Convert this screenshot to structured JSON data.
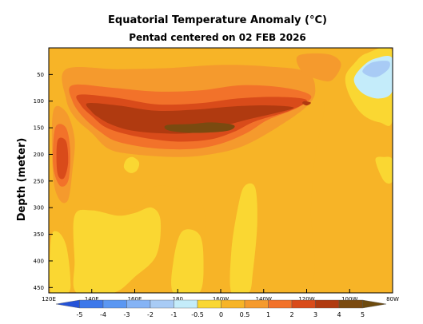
{
  "chart_data": {
    "type": "heatmap",
    "title": "Equatorial Temperature Anomaly (°C)",
    "subtitle": "Pentad centered on 02 FEB 2026",
    "ylabel": "Depth (meter)",
    "xlabel": "",
    "x_range": [
      120,
      280
    ],
    "y_range": [
      0,
      460
    ],
    "y_inverted": true,
    "x_ticks": [
      {
        "value": 120,
        "label": "120E"
      },
      {
        "value": 140,
        "label": "140E"
      },
      {
        "value": 160,
        "label": "160E"
      },
      {
        "value": 180,
        "label": "180"
      },
      {
        "value": 200,
        "label": "160W"
      },
      {
        "value": 220,
        "label": "140W"
      },
      {
        "value": 240,
        "label": "120W"
      },
      {
        "value": 260,
        "label": "100W"
      },
      {
        "value": 280,
        "label": "80W"
      }
    ],
    "y_ticks": [
      {
        "value": 50,
        "label": "50"
      },
      {
        "value": 100,
        "label": "100"
      },
      {
        "value": 150,
        "label": "150"
      },
      {
        "value": 200,
        "label": "200"
      },
      {
        "value": 250,
        "label": "250"
      },
      {
        "value": 300,
        "label": "300"
      },
      {
        "value": 350,
        "label": "350"
      },
      {
        "value": 400,
        "label": "400"
      },
      {
        "value": 450,
        "label": "450"
      }
    ],
    "colorbar": {
      "levels": [
        {
          "label": "-5",
          "value": -5
        },
        {
          "label": "-4",
          "value": -4
        },
        {
          "label": "-3",
          "value": -3
        },
        {
          "label": "-2",
          "value": -2
        },
        {
          "label": "-1",
          "value": -1
        },
        {
          "label": "-0.5",
          "value": -0.5
        },
        {
          "label": "0",
          "value": 0
        },
        {
          "label": "0.5",
          "value": 0.5
        },
        {
          "label": "1",
          "value": 1
        },
        {
          "label": "2",
          "value": 2
        },
        {
          "label": "3",
          "value": 3
        },
        {
          "label": "4",
          "value": 4
        },
        {
          "label": "5",
          "value": 5
        }
      ],
      "colors": [
        "#2452d8",
        "#3d78ea",
        "#5b97f2",
        "#85b3f5",
        "#a8cbf5",
        "#c4ecfa",
        "#fad732",
        "#f7b427",
        "#f59a2d",
        "#f2722a",
        "#d94b1a",
        "#b03a10",
        "#7a4a10",
        "#6d4a0e"
      ]
    },
    "regions": [
      {
        "level": 0.25,
        "points": [
          [
            126,
            30
          ],
          [
            150,
            30
          ],
          [
            175,
            25
          ],
          [
            200,
            22
          ],
          [
            225,
            25
          ],
          [
            242,
            30
          ],
          [
            248,
            60
          ],
          [
            248,
            120
          ],
          [
            244,
            200
          ],
          [
            242,
            300
          ],
          [
            240,
            460
          ],
          [
            196,
            460
          ],
          [
            192,
            300
          ],
          [
            180,
            265
          ],
          [
            168,
            262
          ],
          [
            160,
            300
          ],
          [
            150,
            300
          ],
          [
            140,
            280
          ],
          [
            130,
            280
          ],
          [
            124,
            400
          ],
          [
            121,
            330
          ],
          [
            121,
            100
          ]
        ]
      },
      {
        "level": 0.75,
        "points": [
          [
            128,
            40
          ],
          [
            152,
            40
          ],
          [
            175,
            38
          ],
          [
            200,
            32
          ],
          [
            222,
            35
          ],
          [
            240,
            45
          ],
          [
            244,
            80
          ],
          [
            240,
            110
          ],
          [
            226,
            150
          ],
          [
            210,
            185
          ],
          [
            195,
            200
          ],
          [
            180,
            205
          ],
          [
            160,
            200
          ],
          [
            148,
            190
          ],
          [
            140,
            160
          ],
          [
            132,
            130
          ],
          [
            128,
            95
          ]
        ]
      },
      {
        "level": 0.75,
        "points": [
          [
            122,
            120
          ],
          [
            128,
            120
          ],
          [
            132,
            170
          ],
          [
            131,
            230
          ],
          [
            129,
            285
          ],
          [
            125,
            285
          ],
          [
            122,
            240
          ]
        ]
      },
      {
        "level": 0.75,
        "points": [
          [
            236,
            15
          ],
          [
            250,
            12
          ],
          [
            256,
            30
          ],
          [
            252,
            60
          ],
          [
            246,
            60
          ],
          [
            238,
            45
          ]
        ]
      },
      {
        "level": 1.5,
        "points": [
          [
            131,
            70
          ],
          [
            150,
            75
          ],
          [
            170,
            82
          ],
          [
            190,
            80
          ],
          [
            210,
            70
          ],
          [
            230,
            75
          ],
          [
            242,
            90
          ],
          [
            236,
            112
          ],
          [
            222,
            135
          ],
          [
            212,
            160
          ],
          [
            200,
            180
          ],
          [
            186,
            190
          ],
          [
            168,
            188
          ],
          [
            152,
            176
          ],
          [
            144,
            158
          ],
          [
            136,
            130
          ],
          [
            131,
            100
          ]
        ]
      },
      {
        "level": 1.5,
        "points": [
          [
            123,
            150
          ],
          [
            128,
            150
          ],
          [
            130,
            195
          ],
          [
            129,
            250
          ],
          [
            125,
            258
          ],
          [
            122,
            220
          ]
        ]
      },
      {
        "level": 2.5,
        "points": [
          [
            134,
            88
          ],
          [
            152,
            94
          ],
          [
            170,
            106
          ],
          [
            190,
            104
          ],
          [
            208,
            95
          ],
          [
            226,
            92
          ],
          [
            240,
            98
          ],
          [
            232,
            118
          ],
          [
            216,
            138
          ],
          [
            206,
            158
          ],
          [
            195,
            172
          ],
          [
            180,
            176
          ],
          [
            166,
            170
          ],
          [
            154,
            160
          ],
          [
            146,
            148
          ],
          [
            140,
            128
          ],
          [
            135,
            108
          ]
        ]
      },
      {
        "level": 2.5,
        "points": [
          [
            124,
            175
          ],
          [
            128,
            175
          ],
          [
            129,
            215
          ],
          [
            127,
            245
          ],
          [
            124,
            235
          ]
        ]
      },
      {
        "level": 3.5,
        "points": [
          [
            138,
            104
          ],
          [
            152,
            108
          ],
          [
            170,
            118
          ],
          [
            188,
            116
          ],
          [
            206,
            110
          ],
          [
            222,
            108
          ],
          [
            234,
            112
          ],
          [
            226,
            122
          ],
          [
            212,
            135
          ],
          [
            200,
            148
          ],
          [
            186,
            160
          ],
          [
            170,
            160
          ],
          [
            157,
            154
          ],
          [
            148,
            142
          ],
          [
            143,
            130
          ],
          [
            140,
            120
          ]
        ]
      },
      {
        "level": 3.5,
        "points": [
          [
            239,
            100
          ],
          [
            242,
            103
          ],
          [
            240,
            108
          ],
          [
            238,
            104
          ]
        ]
      },
      {
        "level": 4.5,
        "points": [
          [
            175,
            145
          ],
          [
            186,
            143
          ],
          [
            196,
            140
          ],
          [
            206,
            145
          ],
          [
            204,
            155
          ],
          [
            194,
            159
          ],
          [
            183,
            159
          ],
          [
            175,
            154
          ]
        ]
      },
      {
        "level": -0.25,
        "points": [
          [
            121,
            360
          ],
          [
            124,
            345
          ],
          [
            128,
            370
          ],
          [
            130,
            430
          ],
          [
            129,
            460
          ],
          [
            121,
            460
          ]
        ]
      },
      {
        "level": -0.25,
        "points": [
          [
            132,
            315
          ],
          [
            140,
            305
          ],
          [
            152,
            315
          ],
          [
            160,
            310
          ],
          [
            168,
            300
          ],
          [
            172,
            325
          ],
          [
            170,
            390
          ],
          [
            160,
            430
          ],
          [
            150,
            460
          ],
          [
            133,
            460
          ],
          [
            132,
            400
          ]
        ]
      },
      {
        "level": -0.25,
        "points": [
          [
            182,
            345
          ],
          [
            190,
            350
          ],
          [
            192,
            400
          ],
          [
            190,
            460
          ],
          [
            178,
            460
          ],
          [
            178,
            400
          ]
        ]
      },
      {
        "level": -0.25,
        "points": [
          [
            211,
            260
          ],
          [
            216,
            262
          ],
          [
            217,
            330
          ],
          [
            215,
            420
          ],
          [
            213,
            460
          ],
          [
            205,
            460
          ],
          [
            205,
            380
          ],
          [
            208,
            300
          ]
        ]
      },
      {
        "level": -0.25,
        "points": [
          [
            156,
            210
          ],
          [
            159,
            205
          ],
          [
            162,
            215
          ],
          [
            161,
            230
          ],
          [
            158,
            235
          ],
          [
            155,
            225
          ]
        ]
      },
      {
        "level": -0.25,
        "points": [
          [
            258,
            55
          ],
          [
            262,
            30
          ],
          [
            268,
            10
          ],
          [
            280,
            8
          ],
          [
            280,
            135
          ],
          [
            274,
            140
          ],
          [
            266,
            125
          ],
          [
            260,
            90
          ]
        ]
      },
      {
        "level": -0.75,
        "points": [
          [
            262,
            60
          ],
          [
            266,
            35
          ],
          [
            272,
            20
          ],
          [
            280,
            20
          ],
          [
            280,
            80
          ],
          [
            274,
            95
          ],
          [
            266,
            85
          ]
        ]
      },
      {
        "level": -1.5,
        "points": [
          [
            266,
            45
          ],
          [
            270,
            28
          ],
          [
            278,
            25
          ],
          [
            278,
            40
          ],
          [
            272,
            55
          ]
        ]
      },
      {
        "level": -0.25,
        "points": [
          [
            272,
            210
          ],
          [
            276,
            205
          ],
          [
            280,
            210
          ],
          [
            280,
            250
          ],
          [
            276,
            250
          ]
        ]
      }
    ]
  }
}
